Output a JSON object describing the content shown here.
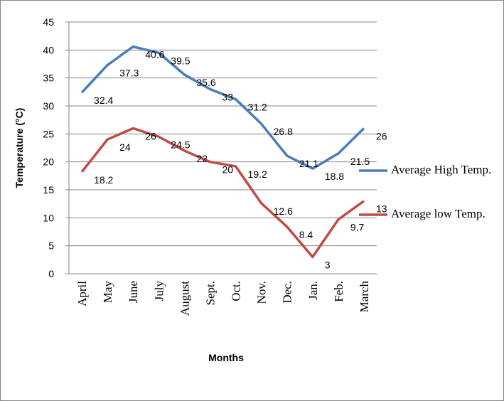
{
  "chart_data": {
    "type": "line",
    "categories": [
      "April",
      "May",
      "June",
      "July",
      "August",
      "Sept.",
      "Oct.",
      "Nov.",
      "Dec.",
      "Jan.",
      "Feb.",
      "March"
    ],
    "series": [
      {
        "name": "Average High Temp.",
        "color": "#4a7ebb",
        "values": [
          32.4,
          37.3,
          40.6,
          39.5,
          35.6,
          33,
          31.2,
          26.8,
          21.1,
          18.8,
          21.5,
          26
        ]
      },
      {
        "name": "Average low Temp.",
        "color": "#be4b48",
        "values": [
          18.2,
          24,
          26,
          24.5,
          22,
          20,
          19.2,
          12.6,
          8.4,
          3,
          9.7,
          13
        ]
      }
    ],
    "ylabel": "Temperature (°C)",
    "xlabel": "Months",
    "ylim": [
      0,
      45
    ],
    "yticks": [
      0,
      5,
      10,
      15,
      20,
      25,
      30,
      35,
      40,
      45
    ],
    "grid": true,
    "legend": "right"
  }
}
